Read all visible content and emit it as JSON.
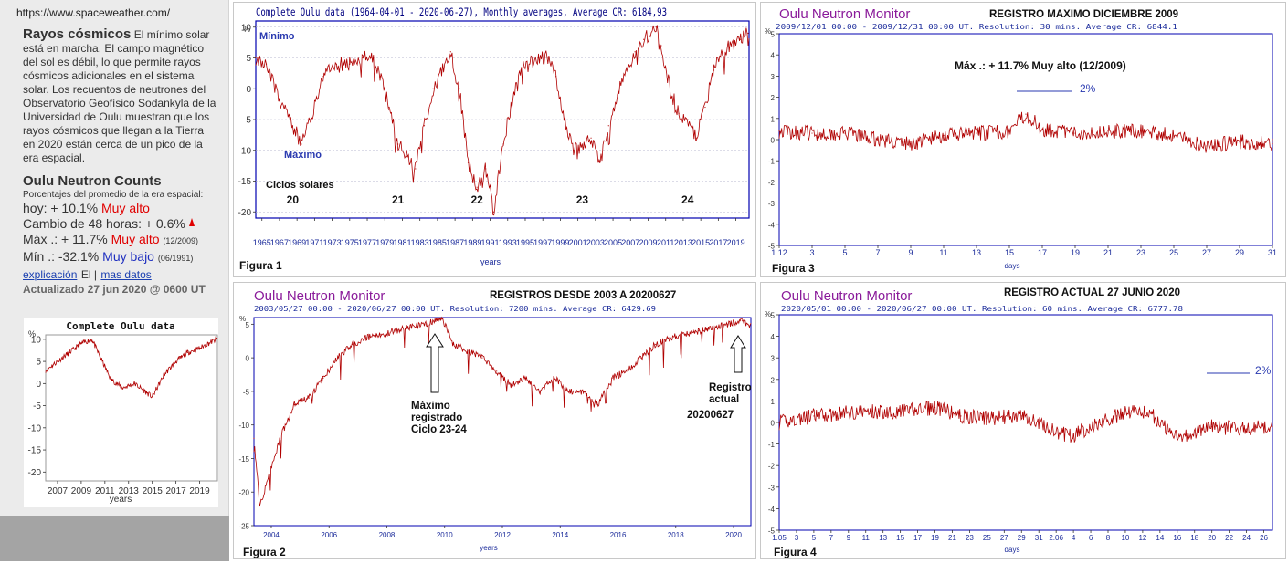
{
  "sidebar": {
    "url": "https://www.spaceweather.com/",
    "cosmic_title": "Rayos cósmicos",
    "cosmic_text": "El mínimo solar está en marcha. El campo magnético del sol es débil, lo que permite rayos cósmicos adicionales en el sistema solar. Los recuentos de neutrones del Observatorio Geofísico Sodankyla de la Universidad de Oulu muestran que los rayos cósmicos que llegan a la Tierra en 2020 están cerca de un pico de la era espacial.",
    "counts_title": "Oulu Neutron Counts",
    "counts_sub": "Porcentajes del promedio de la era espacial:",
    "hoy_label": "hoy: + 10.1%",
    "hoy_status": "Muy alto",
    "cambio_label": "Cambio de 48 horas: + 0.6%",
    "max_label": "Máx .: + 11.7%",
    "max_status": "Muy alto",
    "max_date": "(12/2009)",
    "min_label": "Mín .: -32.1%",
    "min_status": "Muy bajo",
    "min_date": "(06/1991)",
    "link_explain": "explicación",
    "link_sep": "El |",
    "link_more": "mas datos",
    "updated": "Actualizado 27 jun 2020 @ 0600 UT"
  },
  "colors": {
    "series": "#b00000",
    "plot_border": "#0000b0",
    "title_purple": "#8a1a9a",
    "legend_blue": "#2a3ab0"
  },
  "chart_data": [
    {
      "id": "mini",
      "type": "line",
      "title": "Complete Oulu data",
      "xlabel": "years",
      "ylabel": "%",
      "ylim": [
        -22,
        11
      ],
      "xlim": [
        2006,
        2020.5
      ],
      "yticks": [
        10,
        5,
        0,
        -5,
        -10,
        -15,
        -20
      ],
      "xticks": [
        "2007",
        "2009",
        "2011",
        "2013",
        "2015",
        "2017",
        "2019"
      ],
      "series": [
        {
          "x": [
            2006.0,
            2007.0,
            2008.0,
            2009.0,
            2009.9,
            2010.6,
            2011.5,
            2012.5,
            2013.5,
            2014.5,
            2015.0,
            2016.0,
            2017.0,
            2018.0,
            2019.0,
            2020.4
          ],
          "values": [
            3,
            5,
            7,
            9,
            10,
            6,
            1,
            -1,
            0,
            -2,
            -3,
            2,
            5,
            7,
            8,
            10
          ]
        }
      ]
    },
    {
      "id": "figura1",
      "type": "line",
      "title": "Complete Oulu data (1964-04-01 - 2020-06-27), Monthly averages, Average CR: 6184,93",
      "xlabel": "years",
      "ylabel": "%",
      "ylim": [
        -21,
        11
      ],
      "xlim": [
        1964.3,
        2020.5
      ],
      "yticks": [
        10,
        5,
        0,
        -5,
        -10,
        -15,
        -20
      ],
      "xticks": [
        "1965",
        "1967",
        "1969",
        "1971",
        "1973",
        "1975",
        "1977",
        "1979",
        "1981",
        "1983",
        "1985",
        "1987",
        "1989",
        "1991",
        "1993",
        "1995",
        "1997",
        "1999",
        "2001",
        "2003",
        "2005",
        "2007",
        "2009",
        "2011",
        "2013",
        "2015",
        "2017",
        "2019"
      ],
      "annotations": [
        "Mínimo",
        "Máximo",
        "Ciclos solares"
      ],
      "cycles": [
        {
          "label": "20",
          "x": 1968.5
        },
        {
          "label": "21",
          "x": 1980.5
        },
        {
          "label": "22",
          "x": 1989.5
        },
        {
          "label": "23",
          "x": 2001.5
        },
        {
          "label": "24",
          "x": 2013.5
        }
      ],
      "figure_label": "Figura 1",
      "series": [
        {
          "x": [
            1964.3,
            1965.5,
            1967.0,
            1968.5,
            1969.5,
            1970.5,
            1972.0,
            1973.5,
            1975.0,
            1976.5,
            1977.5,
            1978.5,
            1979.5,
            1980.5,
            1981.5,
            1982.5,
            1983.5,
            1984.5,
            1985.5,
            1986.5,
            1987.5,
            1988.5,
            1989.5,
            1990.5,
            1991.4,
            1992.5,
            1993.5,
            1994.5,
            1995.5,
            1996.5,
            1997.5,
            1998.5,
            1999.5,
            2000.5,
            2001.5,
            2002.5,
            2003.5,
            2004.5,
            2005.5,
            2006.5,
            2007.5,
            2008.5,
            2009.9,
            2010.5,
            2011.5,
            2012.5,
            2013.5,
            2014.5,
            2015.5,
            2016.5,
            2017.5,
            2018.5,
            2019.5,
            2020.4
          ],
          "values": [
            5,
            4,
            -2,
            -6,
            -9,
            -5,
            2,
            4,
            4,
            5,
            5,
            2,
            -3,
            -9,
            -11,
            -13,
            -6,
            0,
            3,
            6,
            0,
            -12,
            -16,
            -13,
            -20,
            -9,
            -2,
            3,
            4,
            5,
            5,
            2,
            -5,
            -10,
            -9,
            -8,
            -12,
            -6,
            -1,
            3,
            6,
            8,
            10,
            7,
            0,
            -4,
            -5,
            -8,
            -3,
            3,
            6,
            7,
            8,
            9
          ]
        }
      ]
    },
    {
      "id": "figura2",
      "type": "line",
      "title_station": "Oulu Neutron Monitor",
      "title": "REGISTROS DESDE 2003 A 20200627",
      "subtitle": "2003/05/27  00:00 - 2020/06/27  00:00 UT. Resolution: 7200 mins. Average CR: 6429.69",
      "xlabel": "years",
      "ylabel": "%",
      "ylim": [
        -25,
        6
      ],
      "xlim": [
        2003.4,
        2020.6
      ],
      "yticks": [
        5,
        0,
        -5,
        -10,
        -15,
        -20,
        -25
      ],
      "xticks": [
        "2004",
        "2006",
        "2008",
        "2010",
        "2012",
        "2014",
        "2016",
        "2018",
        "2020"
      ],
      "annotations": [
        "Máximo registrado Ciclo 23-24",
        "Registro actual 20200627"
      ],
      "figure_label": "Figura 2",
      "series": [
        {
          "x": [
            2003.4,
            2003.6,
            2003.9,
            2004.3,
            2004.8,
            2005.3,
            2005.8,
            2006.3,
            2006.8,
            2007.3,
            2007.8,
            2008.3,
            2008.8,
            2009.3,
            2009.9,
            2010.3,
            2010.8,
            2011.3,
            2011.8,
            2012.3,
            2012.8,
            2013.3,
            2013.8,
            2014.3,
            2014.8,
            2015.3,
            2015.8,
            2016.3,
            2016.8,
            2017.3,
            2017.8,
            2018.3,
            2018.8,
            2019.3,
            2019.8,
            2020.3,
            2020.5
          ],
          "values": [
            -12,
            -22,
            -18,
            -12,
            -7,
            -6,
            -3,
            0,
            2,
            3,
            3.5,
            4,
            4.5,
            5,
            6,
            2,
            1,
            0,
            -2,
            -4,
            -3,
            -5,
            -3,
            -5,
            -5,
            -7,
            -3,
            -2,
            0,
            2,
            3,
            3.5,
            4,
            4.5,
            5,
            5.5,
            5
          ]
        }
      ]
    },
    {
      "id": "figura3",
      "type": "line",
      "title_station": "Oulu Neutron Monitor",
      "title": "REGISTRO MAXIMO DICIEMBRE 2009",
      "subtitle": "2009/12/01  00:00 - 2009/12/31  00:00 UT. Resolution: 30 mins. Average CR: 6844.1",
      "annotation": "Máx .: + 11.7% Muy alto (12/2009)",
      "scale_label": "2%",
      "xlabel": "days",
      "ylabel": "%",
      "ylim": [
        -5,
        5
      ],
      "xlim": [
        1,
        31
      ],
      "yticks": [
        5,
        4,
        3,
        2,
        1,
        0,
        -1,
        -2,
        -3,
        -4,
        -5
      ],
      "xticks": [
        "1.12",
        "3",
        "5",
        "7",
        "9",
        "11",
        "13",
        "15",
        "17",
        "19",
        "21",
        "23",
        "25",
        "27",
        "29",
        "31"
      ],
      "figure_label": "Figura 3",
      "series": [
        {
          "x": [
            1,
            3,
            5,
            7,
            9,
            11,
            13,
            15,
            16,
            17,
            19,
            21,
            23,
            25,
            27,
            29,
            31
          ],
          "values": [
            0.4,
            0.3,
            0.3,
            0,
            -0.2,
            0.2,
            0.3,
            0.4,
            1.2,
            0.5,
            0.3,
            0.4,
            0.4,
            0.2,
            -0.3,
            -0.1,
            -0.2
          ]
        }
      ]
    },
    {
      "id": "figura4",
      "type": "line",
      "title_station": "Oulu Neutron Monitor",
      "title": "REGISTRO ACTUAL 27 JUNIO 2020",
      "subtitle": "2020/05/01  00:00 - 2020/06/27  00:00 UT. Resolution: 60 mins. Average CR: 6777.78",
      "scale_label": "2%",
      "xlabel": "days",
      "ylabel": "%",
      "ylim": [
        -5,
        5
      ],
      "xlim": [
        1,
        58
      ],
      "yticks": [
        5,
        4,
        3,
        2,
        1,
        0,
        -1,
        -2,
        -3,
        -4,
        -5
      ],
      "xticks": [
        "1.05",
        "3",
        "5",
        "7",
        "9",
        "11",
        "13",
        "15",
        "17",
        "19",
        "21",
        "23",
        "25",
        "27",
        "29",
        "31",
        "2.06",
        "4",
        "6",
        "8",
        "10",
        "12",
        "14",
        "16",
        "18",
        "20",
        "22",
        "24",
        "26"
      ],
      "figure_label": "Figura 4",
      "series": [
        {
          "x": [
            1,
            5,
            10,
            15,
            19,
            22,
            25,
            29,
            31,
            33,
            35,
            38,
            40,
            42,
            44,
            46,
            48,
            51,
            55,
            58
          ],
          "values": [
            0,
            0.3,
            0.5,
            0.5,
            0.7,
            0.3,
            0.2,
            0.3,
            0,
            -0.5,
            -0.6,
            0,
            0.3,
            0.6,
            0.4,
            -0.4,
            -0.6,
            -0.2,
            -0.3,
            -0.2
          ]
        }
      ]
    }
  ]
}
